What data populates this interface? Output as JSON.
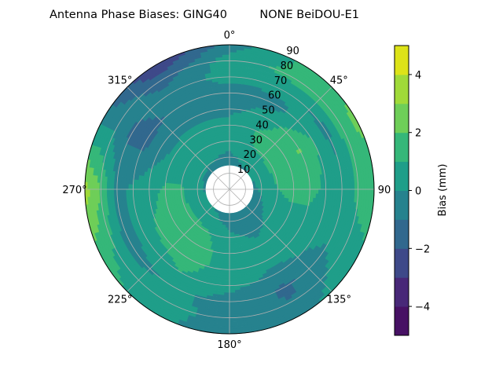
{
  "chart_data": {
    "type": "heatmap",
    "subtype": "polar-filled-contour",
    "title": "Antenna Phase Biases: GING40         NONE BeiDOU-E1",
    "colorbar_label": "Bias (mm)",
    "colormap": "viridis",
    "levels": [
      -5,
      -4,
      -3,
      -2,
      -1,
      0,
      1,
      2,
      3,
      4,
      5
    ],
    "level_colors": [
      "#471164",
      "#482878",
      "#3e4989",
      "#31688e",
      "#26828e",
      "#1f9e89",
      "#35b779",
      "#6ece58",
      "#a0da39",
      "#dde318"
    ],
    "colorbar_ticks": [
      -4,
      -2,
      0,
      2,
      4
    ],
    "colorbar_tick_labels": [
      "−4",
      "−2",
      "0",
      "2",
      "4"
    ],
    "angular_direction": "clockwise",
    "zero_location": "N",
    "angle_ticks": [
      0,
      45,
      90,
      135,
      180,
      225,
      270,
      315
    ],
    "angle_tick_labels": [
      "0°",
      "45°",
      "90",
      "135°",
      "180°",
      "225°",
      "270°",
      "315°"
    ],
    "radial_ticks": [
      10,
      20,
      30,
      40,
      50,
      60,
      70,
      80,
      90
    ],
    "radial_tick_labels": [
      "10",
      "20",
      "30",
      "40",
      "50",
      "60",
      "70",
      "80",
      "90"
    ],
    "rlim": [
      0,
      90
    ],
    "grid": true,
    "azimuth_deg": [
      0,
      30,
      60,
      90,
      120,
      150,
      180,
      210,
      240,
      270,
      300,
      330
    ],
    "zenith_deg": [
      0,
      10,
      20,
      30,
      40,
      50,
      60,
      70,
      80,
      90
    ],
    "bias_mm": [
      [
        -0.5,
        -0.5,
        -0.5,
        -0.5,
        -0.5,
        -0.5,
        -0.5,
        -0.5,
        -0.5,
        -0.5,
        -0.5,
        -0.5
      ],
      [
        -0.4,
        -0.4,
        -0.3,
        -0.3,
        -0.4,
        -0.4,
        -0.4,
        -0.3,
        -0.3,
        -0.3,
        -0.4,
        -0.4
      ],
      [
        -0.2,
        0.2,
        0.3,
        0.1,
        -0.2,
        -0.5,
        -0.3,
        0.2,
        0.3,
        0.2,
        0.1,
        0.0
      ],
      [
        0.3,
        1.0,
        1.3,
        1.0,
        0.3,
        -0.2,
        0.2,
        1.2,
        1.3,
        1.1,
        0.5,
        0.4
      ],
      [
        0.4,
        1.2,
        1.6,
        1.4,
        0.5,
        0.2,
        0.5,
        1.5,
        1.5,
        1.2,
        0.3,
        0.3
      ],
      [
        -0.3,
        0.5,
        2.1,
        1.3,
        0.5,
        0.3,
        0.5,
        1.4,
        1.2,
        0.6,
        -0.5,
        -0.3
      ],
      [
        -0.5,
        -0.3,
        1.0,
        0.8,
        0.2,
        -0.3,
        0.3,
        1.0,
        0.4,
        0.2,
        -1.3,
        -0.8
      ],
      [
        0.4,
        0.3,
        -0.3,
        0.4,
        0.0,
        -1.2,
        -0.4,
        0.2,
        -0.5,
        -0.3,
        -1.2,
        -0.5
      ],
      [
        0.5,
        1.3,
        1.5,
        1.2,
        0.6,
        -1.0,
        -0.3,
        0.3,
        0.8,
        2.0,
        -0.3,
        -1.5
      ],
      [
        -0.5,
        1.2,
        2.3,
        1.5,
        0.8,
        -0.3,
        -0.5,
        0.2,
        1.5,
        3.5,
        -0.5,
        -3.2
      ]
    ]
  }
}
